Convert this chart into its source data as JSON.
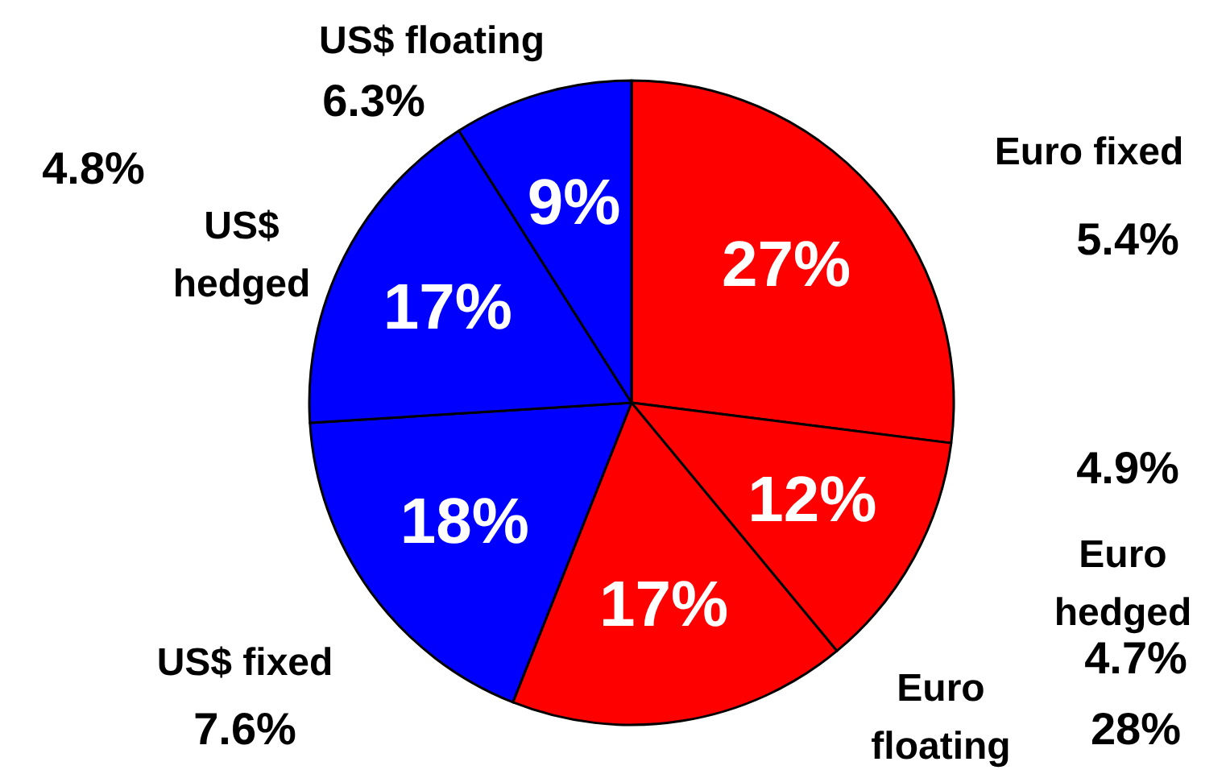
{
  "chart_data": {
    "type": "pie",
    "categories": [
      "Euro fixed",
      "Euro hedged",
      "Euro floating",
      "US$ fixed",
      "US$ hedged",
      "US$ floating"
    ],
    "values": [
      27,
      12,
      17,
      18,
      17,
      9
    ],
    "colors": [
      "#ff0000",
      "#ff0000",
      "#ff0000",
      "#0000ff",
      "#0000ff",
      "#0000ff"
    ],
    "value_labels": [
      "27%",
      "12%",
      "17%",
      "18%",
      "17%",
      "9%"
    ],
    "annotations": [
      "5.4%",
      "4.9%",
      "4.7%",
      "7.6%",
      "4.8%",
      "6.3%",
      "28%"
    ]
  }
}
